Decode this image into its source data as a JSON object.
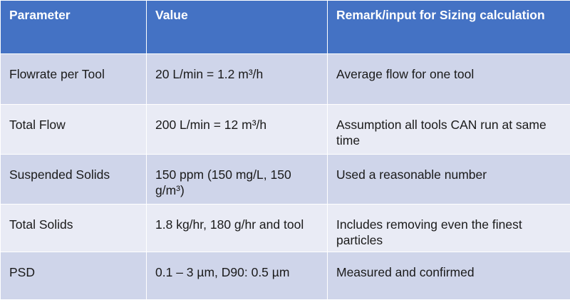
{
  "table": {
    "headers": [
      "Parameter",
      "Value",
      "Remark/input for Sizing calculation"
    ],
    "rows": [
      {
        "parameter": "Flowrate per Tool",
        "value": "20 L/min = 1.2 m³/h",
        "remark": "Average flow for one tool"
      },
      {
        "parameter": "Total Flow",
        "value": "200 L/min = 12 m³/h",
        "remark": "Assumption all tools CAN run at same time"
      },
      {
        "parameter": "Suspended Solids",
        "value": "150 ppm (150 mg/L, 150 g/m³)",
        "remark": "Used a reasonable number"
      },
      {
        "parameter": "Total Solids",
        "value": "1.8 kg/hr, 180 g/hr and tool",
        "remark": "Includes removing even the finest particles"
      },
      {
        "parameter": "PSD",
        "value": "0.1 – 3 µm, D90: 0.5 µm",
        "remark": "Measured and confirmed"
      }
    ]
  },
  "colors": {
    "header_bg": "#4472c4",
    "row_dark": "#cfd5ea",
    "row_light": "#e9ebf5"
  }
}
